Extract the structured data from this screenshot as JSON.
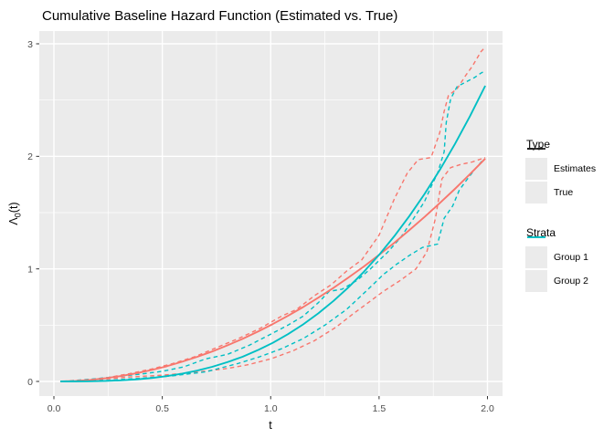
{
  "title": "Cumulative Baseline Hazard Function (Estimated vs. True)",
  "axes": {
    "x": {
      "title": "t",
      "tick_labels": [
        "0.0",
        "0.5",
        "1.0",
        "1.5",
        "2.0"
      ],
      "tick_values": [
        0,
        0.5,
        1.0,
        1.5,
        2.0
      ],
      "minor_values": [
        0.25,
        0.75,
        1.25,
        1.75
      ],
      "range": [
        0,
        2
      ]
    },
    "y": {
      "title_main": "Λ",
      "title_sub": "0",
      "title_rest": "(t)",
      "tick_labels": [
        "0",
        "1",
        "2",
        "3"
      ],
      "tick_values": [
        0,
        1,
        2,
        3
      ],
      "minor_values": [
        0.5,
        1.5,
        2.5
      ],
      "range": [
        0,
        3
      ]
    }
  },
  "legend": {
    "type": {
      "title": "Type",
      "items": [
        {
          "label": "Estimates",
          "linetype": "dashed",
          "color": "#1a1a1a"
        },
        {
          "label": "True",
          "linetype": "solid",
          "color": "#1a1a1a"
        }
      ]
    },
    "strata": {
      "title": "Strata",
      "items": [
        {
          "label": "Group 1",
          "linetype": "solid",
          "color": "#F8766D"
        },
        {
          "label": "Group 2",
          "linetype": "solid",
          "color": "#00BFC4"
        }
      ]
    }
  },
  "chart_data": {
    "type": "line",
    "title": "Cumulative Baseline Hazard Function (Estimated vs. True)",
    "xlabel": "t",
    "ylabel": "Λ0(t)",
    "xlim": [
      0,
      2
    ],
    "ylim": [
      0,
      3
    ],
    "panel_bg": "#EBEBEB",
    "grid_color": "#FFFFFF",
    "tick_color": "#333333",
    "tick_label_color": "#4D4D4D",
    "legend_position": "right",
    "series": [
      {
        "name": "group1-estimate-a",
        "strata": "Group 1",
        "type_label": "Estimates",
        "color": "#F8766D",
        "linetype": "dashed",
        "x": [
          0.04,
          0.15,
          0.25,
          0.35,
          0.45,
          0.55,
          0.65,
          0.75,
          0.85,
          0.95,
          1.05,
          1.12,
          1.2,
          1.28,
          1.35,
          1.42,
          1.5,
          1.57,
          1.63,
          1.68,
          1.74,
          1.78,
          1.8,
          1.82,
          1.86,
          1.9,
          1.93,
          1.97,
          1.99
        ],
        "y": [
          0,
          0.012,
          0.035,
          0.07,
          0.11,
          0.16,
          0.22,
          0.3,
          0.38,
          0.47,
          0.58,
          0.64,
          0.76,
          0.86,
          0.98,
          1.08,
          1.3,
          1.62,
          1.85,
          1.97,
          1.99,
          2.21,
          2.4,
          2.54,
          2.6,
          2.72,
          2.8,
          2.93,
          2.97
        ]
      },
      {
        "name": "group1-estimate-b",
        "strata": "Group 1",
        "type_label": "Estimates",
        "color": "#F8766D",
        "linetype": "dashed",
        "x": [
          0.04,
          0.2,
          0.35,
          0.5,
          0.65,
          0.8,
          0.9,
          1.0,
          1.1,
          1.2,
          1.3,
          1.38,
          1.45,
          1.52,
          1.6,
          1.67,
          1.72,
          1.76,
          1.79,
          1.83,
          1.88,
          1.93,
          1.99
        ],
        "y": [
          0,
          0.015,
          0.04,
          0.055,
          0.08,
          0.115,
          0.15,
          0.2,
          0.27,
          0.36,
          0.48,
          0.6,
          0.7,
          0.8,
          0.9,
          1.0,
          1.15,
          1.45,
          1.8,
          1.9,
          1.93,
          1.95,
          1.99
        ]
      },
      {
        "name": "group2-estimate-a",
        "strata": "Group 2",
        "type_label": "Estimates",
        "color": "#00BFC4",
        "linetype": "dashed",
        "x": [
          0.04,
          0.2,
          0.3,
          0.4,
          0.5,
          0.6,
          0.7,
          0.8,
          0.9,
          1.0,
          1.08,
          1.15,
          1.22,
          1.27,
          1.33,
          1.4,
          1.46,
          1.54,
          1.6,
          1.66,
          1.71,
          1.74,
          1.77,
          1.8,
          1.81,
          1.83,
          1.86,
          1.9,
          1.94,
          1.97,
          1.99
        ],
        "y": [
          0,
          0.025,
          0.045,
          0.065,
          0.09,
          0.13,
          0.2,
          0.24,
          0.32,
          0.42,
          0.5,
          0.58,
          0.7,
          0.8,
          0.82,
          0.9,
          1.0,
          1.15,
          1.28,
          1.45,
          1.6,
          1.73,
          1.85,
          2.04,
          2.3,
          2.51,
          2.62,
          2.66,
          2.7,
          2.74,
          2.76
        ]
      },
      {
        "name": "group2-estimate-b",
        "strata": "Group 2",
        "type_label": "Estimates",
        "color": "#00BFC4",
        "linetype": "dashed",
        "x": [
          0.04,
          0.25,
          0.4,
          0.55,
          0.7,
          0.85,
          0.95,
          1.05,
          1.15,
          1.25,
          1.35,
          1.45,
          1.52,
          1.58,
          1.64,
          1.7,
          1.77,
          1.8,
          1.84,
          1.87,
          1.9,
          1.94,
          1.98
        ],
        "y": [
          0,
          0.01,
          0.028,
          0.05,
          0.085,
          0.16,
          0.22,
          0.29,
          0.38,
          0.5,
          0.64,
          0.82,
          0.95,
          1.04,
          1.12,
          1.19,
          1.22,
          1.45,
          1.56,
          1.7,
          1.78,
          1.88,
          1.97
        ]
      },
      {
        "name": "group1-true",
        "strata": "Group 1",
        "type_label": "True",
        "color": "#F8766D",
        "linetype": "solid",
        "x": [
          0.03,
          0.1,
          0.17,
          0.24,
          0.31,
          0.38,
          0.45,
          0.52,
          0.59,
          0.66,
          0.73,
          0.8,
          0.87,
          0.94,
          1.01,
          1.08,
          1.15,
          1.22,
          1.29,
          1.36,
          1.43,
          1.5,
          1.57,
          1.64,
          1.71,
          1.78,
          1.85,
          1.92,
          1.99
        ],
        "y": [
          0,
          0.005,
          0.014,
          0.029,
          0.048,
          0.072,
          0.101,
          0.135,
          0.174,
          0.218,
          0.266,
          0.32,
          0.378,
          0.442,
          0.51,
          0.583,
          0.661,
          0.744,
          0.832,
          0.925,
          1.022,
          1.125,
          1.232,
          1.345,
          1.462,
          1.584,
          1.711,
          1.843,
          1.98
        ]
      },
      {
        "name": "group2-true",
        "strata": "Group 2",
        "type_label": "True",
        "color": "#00BFC4",
        "linetype": "solid",
        "x": [
          0.03,
          0.1,
          0.17,
          0.24,
          0.31,
          0.38,
          0.45,
          0.52,
          0.59,
          0.66,
          0.73,
          0.8,
          0.87,
          0.94,
          1.01,
          1.08,
          1.15,
          1.22,
          1.29,
          1.36,
          1.43,
          1.5,
          1.57,
          1.64,
          1.71,
          1.78,
          1.85,
          1.92,
          1.99
        ],
        "y": [
          0,
          0.0,
          0.002,
          0.005,
          0.01,
          0.018,
          0.03,
          0.047,
          0.068,
          0.096,
          0.13,
          0.171,
          0.219,
          0.277,
          0.343,
          0.42,
          0.507,
          0.605,
          0.716,
          0.838,
          0.975,
          1.125,
          1.29,
          1.47,
          1.666,
          1.879,
          2.11,
          2.359,
          2.627
        ]
      }
    ]
  }
}
